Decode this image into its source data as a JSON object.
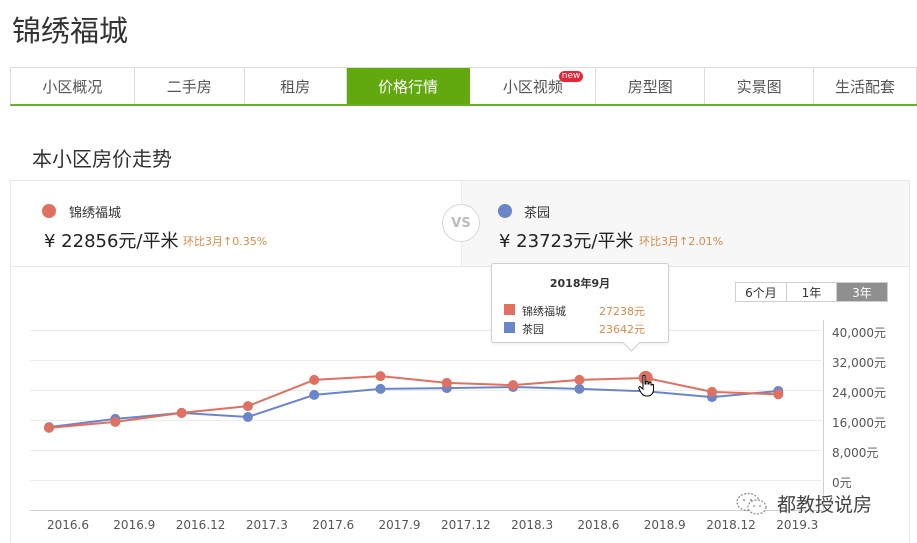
{
  "header": {
    "title": "锦绣福城"
  },
  "tabs": [
    {
      "label": "小区概况",
      "active": false,
      "badge": null
    },
    {
      "label": "二手房",
      "active": false,
      "badge": null
    },
    {
      "label": "租房",
      "active": false,
      "badge": null
    },
    {
      "label": "价格行情",
      "active": true,
      "badge": null
    },
    {
      "label": "小区视频",
      "active": false,
      "badge": "new"
    },
    {
      "label": "房型图",
      "active": false,
      "badge": null
    },
    {
      "label": "实景图",
      "active": false,
      "badge": null
    },
    {
      "label": "生活配套",
      "active": false,
      "badge": null
    }
  ],
  "section": {
    "title": "本小区房价走势"
  },
  "compare": {
    "vs_label": "VS",
    "left": {
      "name": "锦绣福城",
      "price": "¥ 22856元/平米",
      "change": "环比3月↑0.35%",
      "color": "#e07060"
    },
    "right": {
      "name": "茶园",
      "price": "¥ 23723元/平米",
      "change": "环比3月↑2.01%",
      "color": "#6a86c8"
    }
  },
  "range": {
    "options": [
      "6个月",
      "1年",
      "3年"
    ],
    "selected": "3年"
  },
  "tooltip": {
    "title": "2018年9月",
    "rows": [
      {
        "name": "锦绣福城",
        "value": "27238元",
        "color": "#e07060"
      },
      {
        "name": "茶园",
        "value": "23642元",
        "color": "#6a86c8"
      }
    ]
  },
  "watermark": {
    "text": "都教授说房"
  },
  "colors": {
    "accent_green": "#62a80f",
    "series_red": "#e07060",
    "series_blue": "#6a86c8",
    "change_orange": "#d98a4a"
  },
  "chart_data": {
    "type": "line",
    "title": "本小区房价走势",
    "xlabel": "",
    "ylabel": "元/平米",
    "categories": [
      "2016.6",
      "2016.9",
      "2016.12",
      "2017.3",
      "2017.6",
      "2017.9",
      "2017.12",
      "2018.3",
      "2018.6",
      "2018.9",
      "2018.12",
      "2019.3"
    ],
    "series": [
      {
        "name": "锦绣福城",
        "color": "#e07060",
        "values": [
          13900,
          15500,
          17900,
          19700,
          26700,
          27700,
          25900,
          25300,
          26700,
          27238,
          23500,
          22856
        ]
      },
      {
        "name": "茶园",
        "color": "#6a86c8",
        "values": [
          14100,
          16300,
          17900,
          16800,
          22700,
          24300,
          24500,
          24800,
          24300,
          23642,
          22100,
          23723
        ]
      }
    ],
    "yticks": [
      "0元",
      "8,000元",
      "16,000元",
      "24,000元",
      "32,000元",
      "40,000元"
    ],
    "ylim": [
      0,
      40000
    ],
    "grid": true,
    "legend_position": "top",
    "highlighted_point": {
      "category": "2018.9"
    }
  }
}
